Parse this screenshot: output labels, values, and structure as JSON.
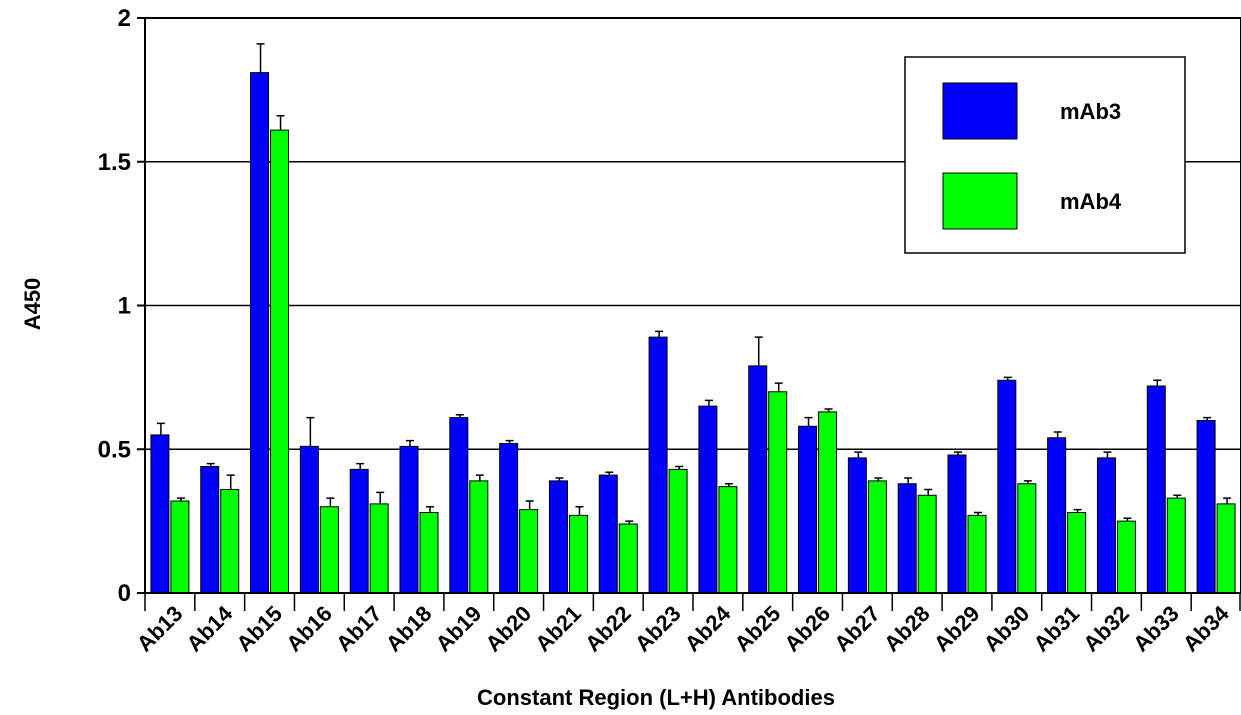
{
  "chart_data": {
    "type": "bar",
    "title": "",
    "xlabel": "Constant Region (L+H) Antibodies",
    "ylabel": "A450",
    "ylim": [
      0,
      2
    ],
    "yticks": [
      "0",
      "0.5",
      "1",
      "1.5",
      "2"
    ],
    "ytick_values": [
      0,
      0.5,
      1,
      1.5,
      2
    ],
    "grid": "horizontal",
    "legend_position": "top-right",
    "categories": [
      "Ab13",
      "Ab14",
      "Ab15",
      "Ab16",
      "Ab17",
      "Ab18",
      "Ab19",
      "Ab20",
      "Ab21",
      "Ab22",
      "Ab23",
      "Ab24",
      "Ab25",
      "Ab26",
      "Ab27",
      "Ab28",
      "Ab29",
      "Ab30",
      "Ab31",
      "Ab32",
      "Ab33",
      "Ab34"
    ],
    "series": [
      {
        "name": "mAb3",
        "color": "#0000ff",
        "values": [
          0.55,
          0.44,
          1.81,
          0.51,
          0.43,
          0.51,
          0.61,
          0.52,
          0.39,
          0.41,
          0.89,
          0.65,
          0.79,
          0.58,
          0.47,
          0.38,
          0.48,
          0.74,
          0.54,
          0.47,
          0.72,
          0.6
        ],
        "errors": [
          0.04,
          0.01,
          0.1,
          0.1,
          0.02,
          0.02,
          0.01,
          0.01,
          0.01,
          0.01,
          0.02,
          0.02,
          0.1,
          0.03,
          0.02,
          0.02,
          0.01,
          0.01,
          0.02,
          0.02,
          0.02,
          0.01
        ]
      },
      {
        "name": "mAb4",
        "color": "#00ff00",
        "values": [
          0.32,
          0.36,
          1.61,
          0.3,
          0.31,
          0.28,
          0.39,
          0.29,
          0.27,
          0.24,
          0.43,
          0.37,
          0.7,
          0.63,
          0.39,
          0.34,
          0.27,
          0.38,
          0.28,
          0.25,
          0.33,
          0.31
        ],
        "errors": [
          0.01,
          0.05,
          0.05,
          0.03,
          0.04,
          0.02,
          0.02,
          0.03,
          0.03,
          0.01,
          0.01,
          0.01,
          0.03,
          0.01,
          0.01,
          0.02,
          0.01,
          0.01,
          0.01,
          0.01,
          0.01,
          0.02
        ]
      }
    ]
  },
  "colors": {
    "mAb3": "#0000ff",
    "mAb4": "#00ff00",
    "bar_edge": "#000000",
    "background": "#ffffff"
  }
}
